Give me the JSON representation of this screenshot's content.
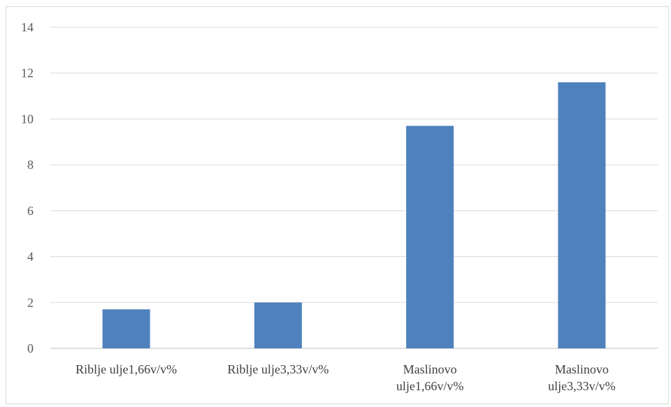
{
  "chart_data": {
    "type": "bar",
    "title": "",
    "xlabel": "",
    "ylabel": "",
    "categories": [
      [
        "Riblje ulje1,66v/v%"
      ],
      [
        "Riblje ulje3,33v/v%"
      ],
      [
        "Maslinovo",
        "ulje1,66v/v%"
      ],
      [
        "Maslinovo",
        "ulje3,33v/v%"
      ]
    ],
    "values": [
      1.7,
      2.0,
      9.7,
      11.6
    ],
    "ylim": [
      0,
      14
    ],
    "yticks": [
      "0",
      "2",
      "4",
      "6",
      "8",
      "10",
      "12",
      "14"
    ],
    "grid": true,
    "legend": "none",
    "colors": {
      "bar": "#4f81bd",
      "grid": "#d9d9d9",
      "axis": "#bfbfbf"
    }
  }
}
